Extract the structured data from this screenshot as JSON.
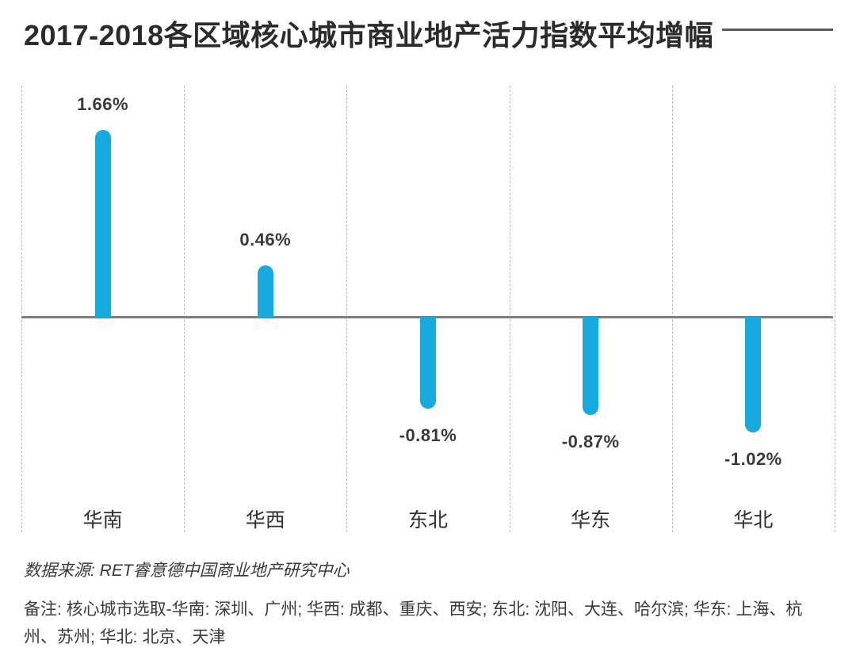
{
  "header": {
    "title": "2017-2018各区域核心城市商业地产活力指数平均增幅"
  },
  "chart_data": {
    "type": "bar",
    "title": "2017-2018各区域核心城市商业地产活力指数平均增幅",
    "categories": [
      "华南",
      "华西",
      "东北",
      "华东",
      "华北"
    ],
    "values": [
      1.66,
      0.46,
      -0.81,
      -0.87,
      -1.02
    ],
    "value_labels": [
      "1.66%",
      "0.46%",
      "-0.81%",
      "-0.87%",
      "-1.02%"
    ],
    "xlabel": "",
    "ylabel": "",
    "ylim": [
      -1.2,
      1.9
    ],
    "legend": "none",
    "grid": "vertical-dashed-column-separators",
    "zero_baseline": true,
    "bar_color": "#17aadf",
    "axis_color": "#7f7f7f",
    "gridline_color": "#b8b8b8",
    "label_color": "#3a3a3a",
    "title_rule_color": "#58595b"
  },
  "footer": {
    "source": "数据来源: RET睿意德中国商业地产研究中心",
    "note": "备注: 核心城市选取-华南: 深圳、广州; 华西: 成都、重庆、西安; 东北: 沈阳、大连、哈尔滨; 华东: 上海、杭州、苏州; 华北: 北京、天津"
  }
}
